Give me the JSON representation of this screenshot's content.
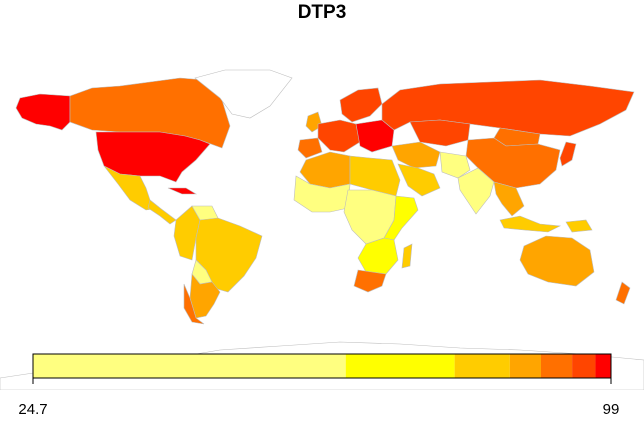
{
  "title": "DTP3",
  "legend": {
    "min_label": "24.7",
    "max_label": "99",
    "min": 24.7,
    "max": 99,
    "breaks": [
      24.7,
      64.9,
      78.9,
      86.0,
      90.0,
      94.0,
      97.0,
      99
    ],
    "colors": [
      "#FFFF80",
      "#FFFF00",
      "#FFCC00",
      "#FFA500",
      "#FF7000",
      "#FF4500",
      "#FF0000"
    ]
  },
  "outline_color": "#bdbdbd",
  "no_data_color": "#ffffff",
  "regions": [
    {
      "id": "alaska",
      "color_index": 6
    },
    {
      "id": "canada",
      "color_index": 4
    },
    {
      "id": "greenland",
      "color_index": -1
    },
    {
      "id": "usa",
      "color_index": 6
    },
    {
      "id": "mexico",
      "color_index": 2
    },
    {
      "id": "central-america",
      "color_index": 2
    },
    {
      "id": "cuba",
      "color_index": 6
    },
    {
      "id": "south-america-north",
      "color_index": 2
    },
    {
      "id": "venezuela",
      "color_index": 0
    },
    {
      "id": "brazil",
      "color_index": 2
    },
    {
      "id": "bolivia",
      "color_index": 0
    },
    {
      "id": "argentina-chile",
      "color_index": 3
    },
    {
      "id": "chile-south",
      "color_index": 4
    },
    {
      "id": "west-africa",
      "color_index": 0
    },
    {
      "id": "central-africa",
      "color_index": 0
    },
    {
      "id": "east-africa",
      "color_index": 1
    },
    {
      "id": "southern-africa",
      "color_index": 1
    },
    {
      "id": "south-africa",
      "color_index": 4
    },
    {
      "id": "madagascar",
      "color_index": 2
    },
    {
      "id": "north-africa",
      "color_index": 3
    },
    {
      "id": "egypt-libya",
      "color_index": 2
    },
    {
      "id": "europe-west",
      "color_index": 5
    },
    {
      "id": "europe-east",
      "color_index": 6
    },
    {
      "id": "scandinavia",
      "color_index": 5
    },
    {
      "id": "iberia",
      "color_index": 4
    },
    {
      "id": "uk",
      "color_index": 3
    },
    {
      "id": "middle-east",
      "color_index": 3
    },
    {
      "id": "arabia",
      "color_index": 2
    },
    {
      "id": "russia",
      "color_index": 5
    },
    {
      "id": "kazakhstan",
      "color_index": 5
    },
    {
      "id": "china",
      "color_index": 4
    },
    {
      "id": "mongolia",
      "color_index": 4
    },
    {
      "id": "india",
      "color_index": 0
    },
    {
      "id": "pakistan-afg",
      "color_index": 0
    },
    {
      "id": "southeast-asia",
      "color_index": 3
    },
    {
      "id": "japan",
      "color_index": 5
    },
    {
      "id": "indonesia",
      "color_index": 2
    },
    {
      "id": "new-guinea",
      "color_index": 2
    },
    {
      "id": "australia",
      "color_index": 3
    },
    {
      "id": "new-zealand",
      "color_index": 4
    },
    {
      "id": "antarctica",
      "color_index": -1
    }
  ]
}
